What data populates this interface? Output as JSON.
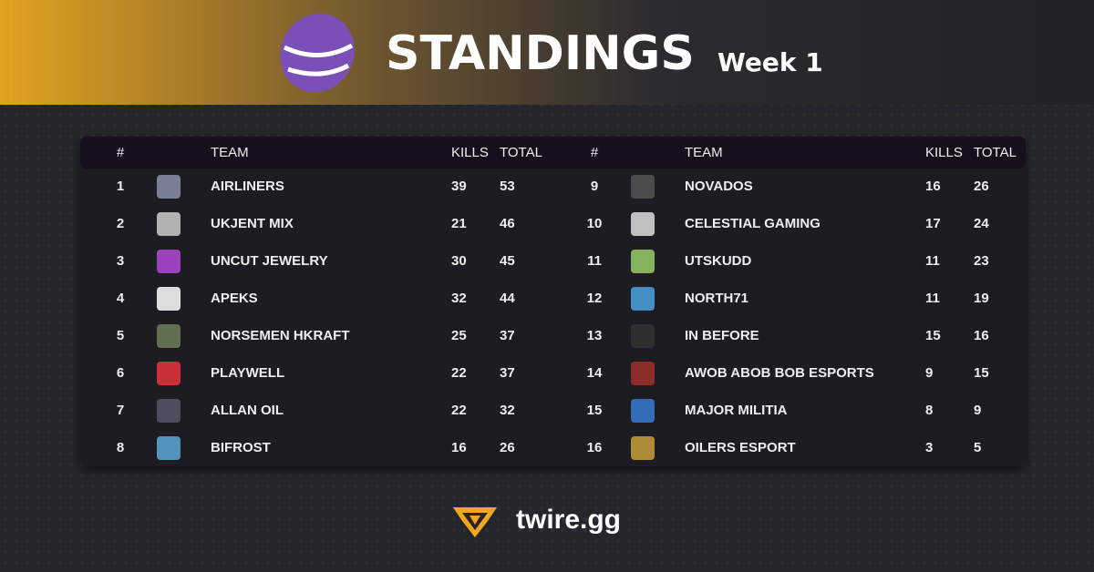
{
  "header": {
    "title": "STANDINGS",
    "subtitle": "Week 1"
  },
  "tables": [
    {
      "columns": [
        "#",
        "TEAM",
        "KILLS",
        "TOTAL"
      ],
      "rows": [
        [
          1,
          "AIRLINERS",
          39,
          53
        ],
        [
          2,
          "UKJENT MIX",
          21,
          46
        ],
        [
          3,
          "UNCUT JEWELRY",
          30,
          45
        ],
        [
          4,
          "APEKS",
          32,
          44
        ],
        [
          5,
          "NORSEMEN HKRAFT",
          25,
          37
        ],
        [
          6,
          "PLAYWELL",
          22,
          37
        ],
        [
          7,
          "ALLAN OIL",
          22,
          32
        ],
        [
          8,
          "BIFROST",
          16,
          26
        ]
      ]
    },
    {
      "columns": [
        "#",
        "TEAM",
        "KILLS",
        "TOTAL"
      ],
      "rows": [
        [
          9,
          "NOVADOS",
          16,
          26
        ],
        [
          10,
          "CELESTIAL GAMING",
          17,
          24
        ],
        [
          11,
          "UTSKUDD",
          11,
          23
        ],
        [
          12,
          "NORTH71",
          11,
          19
        ],
        [
          13,
          "IN BEFORE",
          15,
          16
        ],
        [
          14,
          "AWOB ABOB BOB ESPORTS",
          9,
          15
        ],
        [
          15,
          "MAJOR MILITIA",
          8,
          9
        ],
        [
          16,
          "OILERS ESPORT",
          3,
          5
        ]
      ]
    }
  ],
  "footer": {
    "brand": "twire.gg"
  }
}
